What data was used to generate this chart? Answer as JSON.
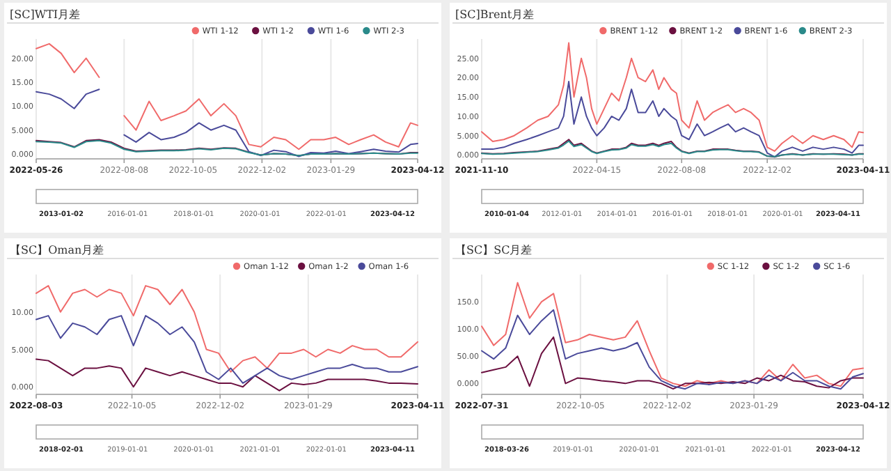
{
  "chart_data": [
    {
      "type": "line",
      "title": "[SC]WTI月差",
      "grid": "x",
      "legend": "top right",
      "x": [
        "2022-05-26",
        "2022-06-06",
        "2022-06-16",
        "2022-06-27",
        "2022-07-07",
        "2022-07-18",
        "2022-07-28",
        "2022-08-08",
        "2022-08-18",
        "2022-08-29",
        "2022-09-08",
        "2022-09-19",
        "2022-09-29",
        "2022-10-10",
        "2022-10-20",
        "2022-10-31",
        "2022-11-10",
        "2022-11-21",
        "2022-12-01",
        "2022-12-12",
        "2022-12-22",
        "2023-01-02",
        "2023-01-12",
        "2023-01-23",
        "2023-02-02",
        "2023-02-13",
        "2023-02-23",
        "2023-03-06",
        "2023-03-16",
        "2023-03-27",
        "2023-04-06",
        "2023-04-12"
      ],
      "series": [
        {
          "name": "WTI 1-12",
          "color": "#f06a6a",
          "values": [
            22,
            23,
            21,
            17,
            20,
            16,
            null,
            8,
            5,
            11,
            7,
            8,
            9,
            11.5,
            8,
            10.5,
            8,
            2,
            1.5,
            3.5,
            3,
            1,
            3,
            3,
            3.5,
            2,
            3,
            4,
            2.5,
            1.5,
            6.5,
            6
          ]
        },
        {
          "name": "WTI 1-2",
          "color": "#6b1040",
          "values": [
            2.8,
            2.6,
            2.4,
            1.5,
            2.8,
            3,
            2.5,
            1.2,
            0.6,
            0.7,
            0.8,
            0.8,
            0.9,
            1.2,
            1,
            1.3,
            1.2,
            0.4,
            -0.2,
            0.1,
            0,
            -0.3,
            0,
            0,
            0.1,
            0,
            0.1,
            0.2,
            0.1,
            0,
            0.3,
            0.3
          ]
        },
        {
          "name": "WTI 1-6",
          "color": "#4a4a9a",
          "values": [
            13,
            12.5,
            11.5,
            9.5,
            12.5,
            13.5,
            null,
            4,
            2.5,
            4.5,
            3,
            3.5,
            4.5,
            6.5,
            5,
            6,
            5,
            0.5,
            -0.3,
            0.8,
            0.5,
            -0.5,
            0.3,
            0.2,
            0.6,
            0.1,
            0.5,
            1,
            0.6,
            0.4,
            2,
            2.2
          ]
        },
        {
          "name": "WTI 2-3",
          "color": "#2a8a8a",
          "values": [
            2.6,
            2.5,
            2.3,
            1.4,
            2.6,
            2.8,
            2.3,
            1,
            0.5,
            0.6,
            0.7,
            0.7,
            0.8,
            1.1,
            0.9,
            1.2,
            1.1,
            0.3,
            -0.2,
            0.1,
            0,
            -0.3,
            0,
            0,
            0.1,
            0,
            0.1,
            0.2,
            0.1,
            0,
            0.2,
            0.2
          ]
        }
      ],
      "xlim": [
        "2022-05-26",
        "2023-04-12"
      ],
      "xticks": [
        "2022-05-26",
        "2022-08-08",
        "2022-10-05",
        "2022-12-02",
        "2023-01-29",
        "2023-04-12"
      ],
      "ylim": [
        -1,
        24
      ],
      "yticks": [
        {
          "value": 0,
          "label": "0.000"
        },
        {
          "value": 5,
          "label": "5.000"
        },
        {
          "value": 10,
          "label": "10.00"
        },
        {
          "value": 15,
          "label": "15.00"
        },
        {
          "value": 20,
          "label": "20.00"
        }
      ],
      "annotations": [
        "2013-01-02",
        "2016-01-01",
        "2018-01-01",
        "2020-01-01",
        "2022-01-01",
        "2023-04-12"
      ]
    },
    {
      "type": "line",
      "title": "[SC]Brent月差",
      "grid": "x",
      "legend": "top right",
      "x": [
        "2021-11-10",
        "2021-11-25",
        "2021-12-10",
        "2021-12-24",
        "2022-01-10",
        "2022-01-25",
        "2022-02-08",
        "2022-02-22",
        "2022-03-01",
        "2022-03-08",
        "2022-03-15",
        "2022-03-25",
        "2022-04-01",
        "2022-04-08",
        "2022-04-15",
        "2022-04-25",
        "2022-05-05",
        "2022-05-15",
        "2022-05-25",
        "2022-06-01",
        "2022-06-10",
        "2022-06-20",
        "2022-06-30",
        "2022-07-08",
        "2022-07-15",
        "2022-07-25",
        "2022-08-01",
        "2022-08-08",
        "2022-08-18",
        "2022-08-29",
        "2022-09-08",
        "2022-09-19",
        "2022-09-29",
        "2022-10-10",
        "2022-10-20",
        "2022-10-31",
        "2022-11-10",
        "2022-11-21",
        "2022-12-02",
        "2022-12-12",
        "2022-12-22",
        "2023-01-05",
        "2023-01-19",
        "2023-02-02",
        "2023-02-16",
        "2023-03-02",
        "2023-03-16",
        "2023-03-27",
        "2023-04-05",
        "2023-04-11"
      ],
      "series": [
        {
          "name": "BRENT 1-12",
          "color": "#f06a6a",
          "values": [
            6,
            3.5,
            4,
            5,
            7,
            9,
            10,
            13,
            18,
            29,
            15,
            25,
            20,
            12,
            8,
            12,
            16,
            14,
            20,
            25,
            20,
            19,
            22,
            17,
            20,
            17,
            16,
            9,
            7,
            14,
            9,
            11,
            12,
            13,
            11,
            12,
            11,
            9,
            2,
            1,
            3,
            5,
            3,
            5,
            4,
            5,
            4,
            2,
            6,
            5.8
          ]
        },
        {
          "name": "BRENT 1-2",
          "color": "#6b1040",
          "values": [
            0.5,
            0.3,
            0.4,
            0.6,
            0.8,
            1,
            1.5,
            2,
            3,
            4,
            2.5,
            3,
            2,
            1,
            0.5,
            1,
            1.5,
            1.5,
            2,
            3,
            2.5,
            2.5,
            3,
            2.5,
            3,
            3.5,
            2,
            1,
            0.5,
            1,
            1,
            1.5,
            1.5,
            1.5,
            1.2,
            1,
            1,
            0.8,
            -0.3,
            -0.5,
            0,
            0.3,
            0,
            0.3,
            0.2,
            0.3,
            0.2,
            0,
            0.3,
            0.3
          ]
        },
        {
          "name": "BRENT 1-6",
          "color": "#4a4a9a",
          "values": [
            1.5,
            1.5,
            2,
            3,
            4,
            5,
            6,
            7,
            10,
            19,
            8,
            15,
            10,
            7,
            5,
            7,
            10,
            9,
            12,
            17,
            11,
            11,
            14,
            10,
            12,
            10,
            9,
            5,
            4,
            8,
            5,
            6,
            7,
            8,
            6,
            7,
            6,
            5,
            0.5,
            -0.5,
            1,
            2,
            1,
            2,
            1.5,
            2,
            1.5,
            0.5,
            2.5,
            2.5
          ]
        },
        {
          "name": "BRENT 2-3",
          "color": "#2a8a8a",
          "values": [
            0.4,
            0.2,
            0.3,
            0.5,
            0.7,
            0.9,
            1.3,
            1.8,
            2.6,
            3.6,
            2.2,
            2.7,
            1.8,
            0.9,
            0.4,
            0.9,
            1.3,
            1.4,
            1.8,
            2.7,
            2.3,
            2.3,
            2.7,
            2.2,
            2.7,
            3,
            1.8,
            0.9,
            0.4,
            0.9,
            0.9,
            1.3,
            1.4,
            1.4,
            1.1,
            0.9,
            0.9,
            0.7,
            -0.3,
            -0.4,
            0,
            0.2,
            0,
            0.2,
            0.2,
            0.2,
            0.1,
            0,
            0.2,
            0.2
          ]
        }
      ],
      "xlim": [
        "2021-11-10",
        "2023-04-11"
      ],
      "xticks": [
        "2021-11-10",
        "2022-04-15",
        "2022-08-08",
        "2022-12-02",
        "2023-04-11"
      ],
      "ylim": [
        -1,
        30
      ],
      "yticks": [
        {
          "value": 0,
          "label": "0.000"
        },
        {
          "value": 5,
          "label": "5.000"
        },
        {
          "value": 10,
          "label": "10.00"
        },
        {
          "value": 15,
          "label": "15.00"
        },
        {
          "value": 20,
          "label": "20.00"
        },
        {
          "value": 25,
          "label": "25.00"
        }
      ],
      "annotations": [
        "2010-01-04",
        "2012-01-01",
        "2014-01-01",
        "2016-01-01",
        "2018-01-01",
        "2020-01-01",
        "2023-04-11"
      ]
    },
    {
      "type": "line",
      "title": "【SC】Oman月差",
      "grid": "x",
      "legend": "top right",
      "x": [
        "2022-08-03",
        "2022-08-11",
        "2022-08-19",
        "2022-08-27",
        "2022-09-04",
        "2022-09-12",
        "2022-09-20",
        "2022-09-28",
        "2022-10-06",
        "2022-10-14",
        "2022-10-22",
        "2022-10-30",
        "2022-11-07",
        "2022-11-15",
        "2022-11-23",
        "2022-12-01",
        "2022-12-09",
        "2022-12-17",
        "2022-12-25",
        "2023-01-02",
        "2023-01-10",
        "2023-01-18",
        "2023-01-26",
        "2023-02-03",
        "2023-02-11",
        "2023-02-19",
        "2023-02-27",
        "2023-03-07",
        "2023-03-15",
        "2023-03-23",
        "2023-03-31",
        "2023-04-11"
      ],
      "series": [
        {
          "name": "Oman 1-12",
          "color": "#f06a6a",
          "values": [
            12.5,
            13.5,
            10,
            12.5,
            13,
            12,
            13,
            12.5,
            9.5,
            13.5,
            13,
            11,
            13,
            10,
            5,
            4.5,
            2,
            3.5,
            4,
            2.5,
            4.5,
            4.5,
            5,
            4,
            5,
            4.5,
            5.5,
            5,
            5,
            4,
            4,
            6
          ]
        },
        {
          "name": "Oman 1-2",
          "color": "#6b1040",
          "values": [
            3.7,
            3.5,
            2.5,
            1.5,
            2.5,
            2.5,
            2.8,
            2.5,
            0,
            2.5,
            2,
            1.5,
            2,
            1.5,
            1,
            0.5,
            0.5,
            0,
            1.5,
            0.5,
            -0.5,
            0.5,
            0.3,
            0.5,
            1,
            1,
            1,
            1,
            0.8,
            0.5,
            0.5,
            0.4
          ]
        },
        {
          "name": "Oman 1-6",
          "color": "#4a4a9a",
          "values": [
            9,
            9.5,
            6.5,
            8.5,
            8,
            7,
            9,
            9.5,
            5.5,
            9.5,
            8.5,
            7,
            8,
            6,
            2,
            1,
            2.5,
            0.5,
            1.5,
            2.5,
            1.5,
            1,
            1.5,
            2,
            2.5,
            2.5,
            3,
            2.5,
            2.5,
            2,
            2,
            2.7
          ]
        }
      ],
      "xlim": [
        "2022-08-03",
        "2023-04-11"
      ],
      "xticks": [
        "2022-08-03",
        "2022-10-05",
        "2022-12-02",
        "2023-01-29",
        "2023-04-11"
      ],
      "ylim": [
        -1,
        15
      ],
      "yticks": [
        {
          "value": 0,
          "label": "0.000"
        },
        {
          "value": 5,
          "label": "5.000"
        },
        {
          "value": 10,
          "label": "10.00"
        }
      ],
      "annotations": [
        "2018-02-01",
        "2019-01-01",
        "2020-01-01",
        "2021-01-01",
        "2022-01-01",
        "2023-04-11"
      ]
    },
    {
      "type": "line",
      "title": "【SC】SC月差",
      "grid": "x",
      "legend": "top right",
      "x": [
        "2022-07-31",
        "2022-08-08",
        "2022-08-16",
        "2022-08-24",
        "2022-09-01",
        "2022-09-09",
        "2022-09-17",
        "2022-09-25",
        "2022-10-03",
        "2022-10-11",
        "2022-10-19",
        "2022-10-27",
        "2022-11-04",
        "2022-11-12",
        "2022-11-20",
        "2022-11-28",
        "2022-12-06",
        "2022-12-14",
        "2022-12-22",
        "2022-12-30",
        "2023-01-07",
        "2023-01-15",
        "2023-01-23",
        "2023-01-31",
        "2023-02-08",
        "2023-02-16",
        "2023-02-24",
        "2023-03-04",
        "2023-03-12",
        "2023-03-20",
        "2023-03-28",
        "2023-04-05",
        "2023-04-12"
      ],
      "series": [
        {
          "name": "SC 1-12",
          "color": "#f06a6a",
          "values": [
            105,
            70,
            90,
            185,
            120,
            150,
            165,
            75,
            80,
            90,
            85,
            80,
            85,
            115,
            60,
            10,
            0,
            -5,
            5,
            0,
            5,
            0,
            5,
            0,
            25,
            5,
            35,
            10,
            15,
            0,
            -5,
            25,
            28
          ]
        },
        {
          "name": "SC 1-2",
          "color": "#6b1040",
          "values": [
            20,
            25,
            30,
            50,
            -5,
            55,
            85,
            0,
            10,
            8,
            5,
            3,
            0,
            5,
            5,
            0,
            -10,
            0,
            0,
            2,
            0,
            3,
            0,
            10,
            5,
            15,
            5,
            3,
            -5,
            -8,
            5,
            10,
            10
          ]
        },
        {
          "name": "SC 1-6",
          "color": "#4a4a9a",
          "values": [
            60,
            45,
            65,
            125,
            90,
            115,
            135,
            45,
            55,
            60,
            65,
            60,
            65,
            75,
            30,
            5,
            -5,
            -10,
            0,
            -2,
            2,
            0,
            5,
            0,
            15,
            5,
            20,
            5,
            5,
            -5,
            -10,
            12,
            18
          ]
        }
      ],
      "xlim": [
        "2022-07-31",
        "2023-04-12"
      ],
      "xticks": [
        "2022-07-31",
        "2022-10-05",
        "2022-12-02",
        "2023-01-29",
        "2023-04-12"
      ],
      "ylim": [
        -20,
        200
      ],
      "yticks": [
        {
          "value": 0,
          "label": "0.000"
        },
        {
          "value": 50,
          "label": "50.00"
        },
        {
          "value": 100,
          "label": "100.0"
        },
        {
          "value": 150,
          "label": "150.0"
        }
      ],
      "annotations": [
        "2018-03-26",
        "2019-01-01",
        "2020-01-01",
        "2021-01-01",
        "2022-01-01",
        "2023-04-12"
      ]
    }
  ]
}
